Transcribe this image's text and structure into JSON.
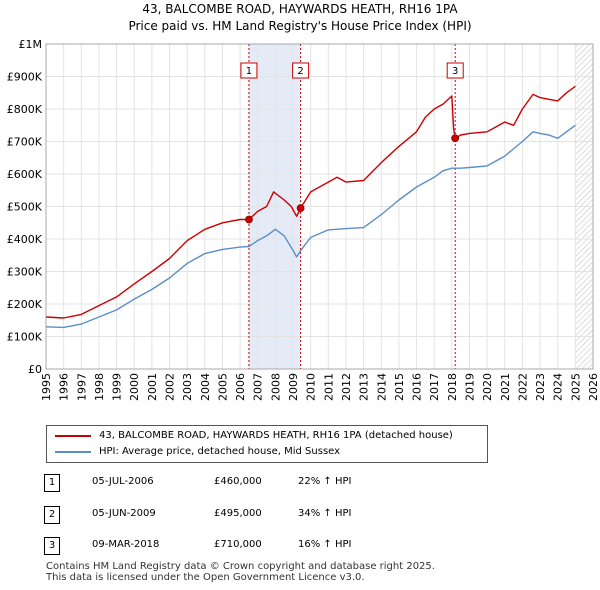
{
  "chart_data": {
    "type": "line",
    "title": "43, BALCOMBE ROAD, HAYWARDS HEATH, RH16 1PA",
    "subtitle": "Price paid vs. HM Land Registry's House Price Index (HPI)",
    "xlim": [
      1995,
      2026
    ],
    "ylim": [
      0,
      1000000
    ],
    "x_ticks": [
      1995,
      1996,
      1997,
      1998,
      1999,
      2000,
      2001,
      2002,
      2003,
      2004,
      2005,
      2006,
      2007,
      2008,
      2009,
      2010,
      2011,
      2012,
      2013,
      2014,
      2015,
      2016,
      2017,
      2018,
      2019,
      2020,
      2021,
      2022,
      2023,
      2024,
      2025,
      2026
    ],
    "x_tick_labels": [
      "1995",
      "1996",
      "1997",
      "1998",
      "1999",
      "2000",
      "2001",
      "2002",
      "2003",
      "2004",
      "2005",
      "2006",
      "2007",
      "2008",
      "2009",
      "2010",
      "2011",
      "2012",
      "2013",
      "2014",
      "2015",
      "2016",
      "2017",
      "2018",
      "2019",
      "2020",
      "2021",
      "2022",
      "2023",
      "2024",
      "2025",
      "2026"
    ],
    "y_ticks": [
      0,
      100000,
      200000,
      300000,
      400000,
      500000,
      600000,
      700000,
      800000,
      900000,
      1000000
    ],
    "y_tick_labels": [
      "£0",
      "£100K",
      "£200K",
      "£300K",
      "£400K",
      "£500K",
      "£600K",
      "£700K",
      "£800K",
      "£900K",
      "£1M"
    ],
    "grid": true,
    "shaded_periods": [
      [
        2006.5,
        2009.43
      ]
    ],
    "forecast_start": 2025.0,
    "series": [
      {
        "name": "43, BALCOMBE ROAD, HAYWARDS HEATH, RH16 1PA (detached house)",
        "color": "#cc0000",
        "x": [
          1995.0,
          1996.0,
          1997.0,
          1998.0,
          1999.0,
          2000.0,
          2001.0,
          2002.0,
          2003.0,
          2004.0,
          2005.0,
          2006.0,
          2006.5,
          2007.0,
          2007.5,
          2007.9,
          2008.5,
          2008.9,
          2009.2,
          2009.43,
          2010.0,
          2011.0,
          2011.5,
          2012.0,
          2013.0,
          2014.0,
          2015.0,
          2016.0,
          2016.5,
          2017.0,
          2017.5,
          2018.0,
          2018.1,
          2018.19,
          2018.5,
          2019.0,
          2020.0,
          2021.0,
          2021.5,
          2022.0,
          2022.6,
          2023.0,
          2023.5,
          2024.0,
          2024.5,
          2025.0
        ],
        "y": [
          160000,
          157000,
          168000,
          195000,
          222000,
          262000,
          300000,
          340000,
          395000,
          430000,
          450000,
          460000,
          460000,
          485000,
          500000,
          545000,
          520000,
          500000,
          470000,
          495000,
          545000,
          575000,
          590000,
          575000,
          580000,
          635000,
          685000,
          730000,
          775000,
          800000,
          815000,
          840000,
          740000,
          710000,
          720000,
          725000,
          730000,
          760000,
          750000,
          800000,
          845000,
          835000,
          830000,
          825000,
          850000,
          870000
        ]
      },
      {
        "name": "HPI: Average price, detached house, Mid Sussex",
        "color": "#5b8ec9",
        "x": [
          1995.0,
          1996.0,
          1997.0,
          1998.0,
          1999.0,
          2000.0,
          2001.0,
          2002.0,
          2003.0,
          2004.0,
          2005.0,
          2006.0,
          2006.5,
          2007.0,
          2007.5,
          2008.0,
          2008.5,
          2009.0,
          2009.2,
          2009.5,
          2010.0,
          2011.0,
          2012.0,
          2013.0,
          2014.0,
          2015.0,
          2016.0,
          2017.0,
          2017.5,
          2018.0,
          2018.5,
          2019.0,
          2020.0,
          2021.0,
          2022.0,
          2022.6,
          2023.0,
          2023.5,
          2024.0,
          2024.5,
          2025.0
        ],
        "y": [
          130000,
          128000,
          138000,
          160000,
          182000,
          215000,
          245000,
          280000,
          325000,
          355000,
          368000,
          375000,
          377000,
          395000,
          410000,
          430000,
          410000,
          365000,
          345000,
          370000,
          405000,
          428000,
          432000,
          435000,
          475000,
          520000,
          560000,
          590000,
          610000,
          618000,
          618000,
          620000,
          625000,
          655000,
          700000,
          730000,
          725000,
          720000,
          710000,
          730000,
          750000
        ]
      }
    ],
    "sale_markers": [
      {
        "label": "1",
        "x": 2006.5,
        "y": 460000
      },
      {
        "label": "2",
        "x": 2009.43,
        "y": 495000
      },
      {
        "label": "3",
        "x": 2018.19,
        "y": 710000
      }
    ]
  },
  "legend": {
    "property_label": "43, BALCOMBE ROAD, HAYWARDS HEATH, RH16 1PA (detached house)",
    "hpi_label": "HPI: Average price, detached house, Mid Sussex"
  },
  "sales": [
    {
      "num": "1",
      "date": "05-JUL-2006",
      "price": "£460,000",
      "hpi": "22% ↑ HPI"
    },
    {
      "num": "2",
      "date": "05-JUN-2009",
      "price": "£495,000",
      "hpi": "34% ↑ HPI"
    },
    {
      "num": "3",
      "date": "09-MAR-2018",
      "price": "£710,000",
      "hpi": "16% ↑ HPI"
    }
  ],
  "footer": {
    "line1": "Contains HM Land Registry data © Crown copyright and database right 2025.",
    "line2": "This data is licensed under the Open Government Licence v3.0."
  }
}
